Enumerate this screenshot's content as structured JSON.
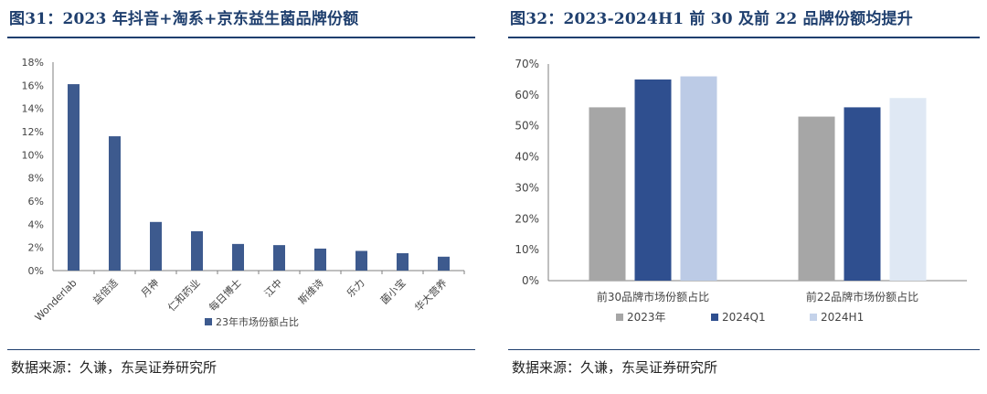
{
  "left": {
    "title": "图31：2023 年抖音+淘系+京东益生菌品牌份额",
    "source": "数据来源：久谦，东吴证券研究所"
  },
  "right": {
    "title": "图32：2023-2024H1 前 30 及前 22 品牌份额均提升",
    "source": "数据来源：久谦，东吴证券研究所"
  },
  "chart_data": [
    {
      "type": "bar",
      "categories": [
        "Wonderlab",
        "益倍适",
        "月神",
        "仁和药业",
        "每日博士",
        "江中",
        "斯维诗",
        "乐力",
        "菌小宝",
        "华大营养"
      ],
      "series": [
        {
          "name": "23年市场份额占比",
          "values": [
            16.1,
            11.6,
            4.2,
            3.4,
            2.3,
            2.2,
            1.9,
            1.7,
            1.5,
            1.2
          ],
          "color": "#3d5a8e"
        }
      ],
      "ylim": [
        0,
        18
      ],
      "yticks": [
        0,
        2,
        4,
        6,
        8,
        10,
        12,
        14,
        16,
        18
      ],
      "ytick_suffix": "%",
      "grid": false,
      "legend": "bottom",
      "xlabel_rotation": "rotated -45°"
    },
    {
      "type": "bar",
      "categories": [
        "前30品牌市场份额占比",
        "前22品牌市场份额占比"
      ],
      "series": [
        {
          "name": "2023年",
          "values": [
            56,
            53
          ],
          "color": "#a6a6a6"
        },
        {
          "name": "2024Q1",
          "values": [
            65,
            56
          ],
          "color": "#2f4f8f"
        },
        {
          "name": "2024H1",
          "values": [
            66,
            59
          ],
          "color": "#c5d3ea"
        }
      ],
      "series_colors_by_group": [
        [
          "#a6a6a6",
          "#2f4f8f",
          "#bccbe6"
        ],
        [
          "#a6a6a6",
          "#2f4f8f",
          "#dfe8f4"
        ]
      ],
      "ylim": [
        0,
        70
      ],
      "yticks": [
        0,
        10,
        20,
        30,
        40,
        50,
        60,
        70
      ],
      "ytick_suffix": "%",
      "grid": false,
      "legend": "bottom"
    }
  ]
}
